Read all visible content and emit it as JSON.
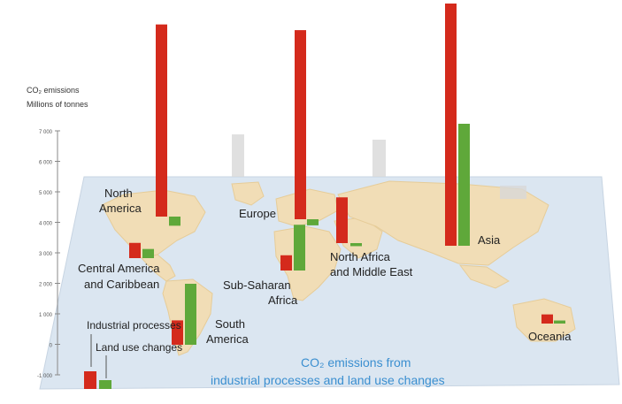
{
  "chart_data": {
    "type": "bar",
    "ylabel_line1": "CO₂ emissions",
    "ylabel_line2": "Millions of tonnes",
    "y_ticks": [
      "7 000",
      "6 000",
      "5 000",
      "4 000",
      "3 000",
      "2 000",
      "1 000",
      "0",
      "-1 000"
    ],
    "ylim": [
      -1000,
      7000
    ],
    "series": [
      {
        "name": "Industrial processes",
        "color": "#d42a1c"
      },
      {
        "name": "Land use changes",
        "color": "#5fa83a"
      }
    ],
    "regions": [
      {
        "name": "North America",
        "industrial": 6300,
        "land_use": -300
      },
      {
        "name": "Central America and Caribbean",
        "industrial": 500,
        "land_use": 300
      },
      {
        "name": "South America",
        "industrial": 800,
        "land_use": 2000
      },
      {
        "name": "Europe",
        "industrial": 6200,
        "land_use": -200
      },
      {
        "name": "Sub-Saharan Africa",
        "industrial": 500,
        "land_use": 1500
      },
      {
        "name": "North Africa and Middle East",
        "industrial": 1500,
        "land_use": -100
      },
      {
        "name": "Asia",
        "industrial": 8000,
        "land_use": 4000
      },
      {
        "name": "Oceania",
        "industrial": 300,
        "land_use": 100
      }
    ],
    "caption_line1": "CO₂ emissions from",
    "caption_line2": "industrial processes and land use changes"
  },
  "legend": {
    "industrial_label": "Industrial processes",
    "land_label": "Land use changes"
  },
  "colors": {
    "map_plane": "#dbe6f1",
    "land": "#f1ddb6",
    "caption": "#3b8fd0"
  }
}
